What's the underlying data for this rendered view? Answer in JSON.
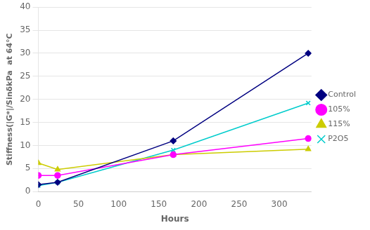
{
  "chart_data": {
    "type": "line",
    "xlabel": "Hours",
    "ylabel": "Stiffness(|G*|/SinδkPa  at 64°C",
    "x": [
      0,
      24,
      168,
      336
    ],
    "series": [
      {
        "name": "Control",
        "color": "#000080",
        "marker": "diamond",
        "values": [
          1.5,
          2.0,
          11.0,
          30.0
        ]
      },
      {
        "name": "105%",
        "color": "#FF00FF",
        "marker": "circle",
        "values": [
          3.5,
          3.5,
          8.0,
          11.5
        ]
      },
      {
        "name": "115%",
        "color": "#CCCC00",
        "marker": "triangle",
        "values": [
          6.2,
          4.8,
          8.0,
          9.2
        ]
      },
      {
        "name": "P2O5",
        "color": "#00CCCC",
        "marker": "x",
        "values": [
          1.3,
          2.0,
          9.0,
          19.2
        ]
      }
    ],
    "xlim": [
      0,
      340
    ],
    "ylim": [
      0,
      40
    ],
    "xticks": [
      0,
      50,
      100,
      150,
      200,
      250,
      300
    ],
    "yticks": [
      0,
      5,
      10,
      15,
      20,
      25,
      30,
      35,
      40
    ],
    "grid": "y",
    "legend": "right"
  }
}
